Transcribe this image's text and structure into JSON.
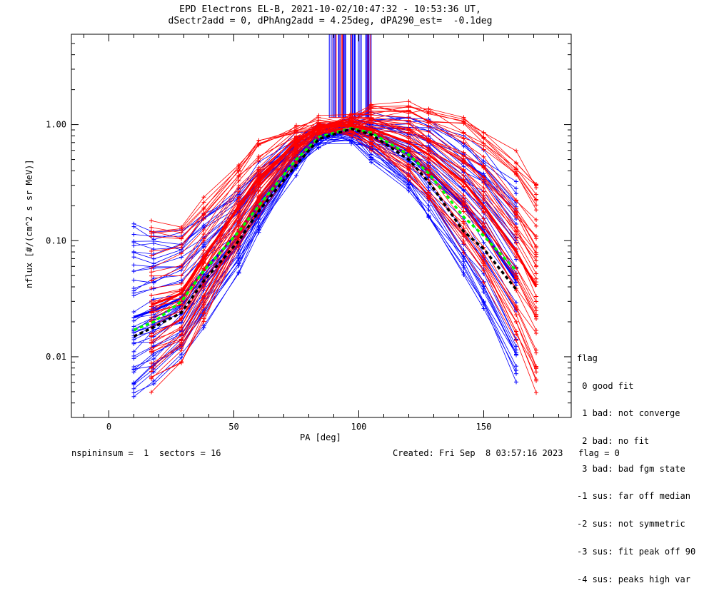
{
  "chart_data": {
    "type": "line",
    "title": "EPD Electrons EL-B, 2021-10-02/10:47:32 - 10:53:36 UT,",
    "subtitle": "dSectr2add = 0, dPhAng2add = 4.25deg, dPA290_est=  -0.1deg",
    "xlabel": "PA [deg]",
    "ylabel": "nflux [#/(cm^2 s sr MeV)]",
    "xlim": [
      -15,
      185
    ],
    "ylim": [
      0.003,
      6
    ],
    "yscale": "log",
    "xticks": [
      {
        "v": 0,
        "label": "0"
      },
      {
        "v": 50,
        "label": "50"
      },
      {
        "v": 100,
        "label": "100"
      },
      {
        "v": 150,
        "label": "150"
      }
    ],
    "yticks": [
      {
        "v": 0.01,
        "label": "0.01"
      },
      {
        "v": 0.1,
        "label": "0.10"
      },
      {
        "v": 1,
        "label": "1.00"
      }
    ],
    "grid": false,
    "series": [
      {
        "color": "#0000ff",
        "kind": "bundle",
        "x": [
          10,
          18,
          29,
          38,
          52,
          60,
          75,
          84,
          97,
          105,
          120,
          128,
          142,
          150,
          163
        ],
        "values": [
          0.022,
          0.025,
          0.032,
          0.055,
          0.12,
          0.22,
          0.55,
          0.8,
          0.88,
          0.78,
          0.55,
          0.4,
          0.2,
          0.12,
          0.045
        ]
      },
      {
        "color": "#ff0000",
        "kind": "bundle",
        "x": [
          17,
          29,
          38,
          52,
          60,
          75,
          84,
          97,
          105,
          120,
          128,
          142,
          150,
          163,
          171
        ],
        "values": [
          0.028,
          0.035,
          0.07,
          0.2,
          0.35,
          0.7,
          0.95,
          0.98,
          0.92,
          0.7,
          0.55,
          0.32,
          0.2,
          0.08,
          0.04
        ]
      },
      {
        "color": "#00ff00",
        "kind": "fit",
        "x": [
          10,
          18,
          29,
          38,
          52,
          60,
          75,
          84,
          97,
          105,
          120,
          128,
          142,
          150,
          163
        ],
        "values": [
          0.017,
          0.02,
          0.03,
          0.055,
          0.12,
          0.2,
          0.5,
          0.78,
          0.93,
          0.85,
          0.55,
          0.38,
          0.16,
          0.11,
          0.055
        ]
      },
      {
        "color": "#000000",
        "kind": "fit",
        "x": [
          10,
          18,
          29,
          38,
          52,
          60,
          75,
          84,
          97,
          105,
          120,
          128,
          142,
          150,
          163
        ],
        "values": [
          0.015,
          0.018,
          0.024,
          0.045,
          0.1,
          0.18,
          0.45,
          0.75,
          0.92,
          0.82,
          0.5,
          0.32,
          0.12,
          0.085,
          0.038
        ]
      }
    ]
  },
  "legend": {
    "title": "flag",
    "items": [
      " 0 good fit",
      " 1 bad: not converge",
      " 2 bad: no fit",
      " 3 bad: bad fgm state",
      "-1 sus: far off median",
      "-2 sus: not symmetric",
      "-3 sus: fit peak off 90",
      "-4 sus: peaks high var"
    ]
  },
  "footer": {
    "left": "nspininsum =  1  sectors = 16",
    "right": "Created: Fri Sep  8 03:57:16 2023   flag = 0"
  }
}
